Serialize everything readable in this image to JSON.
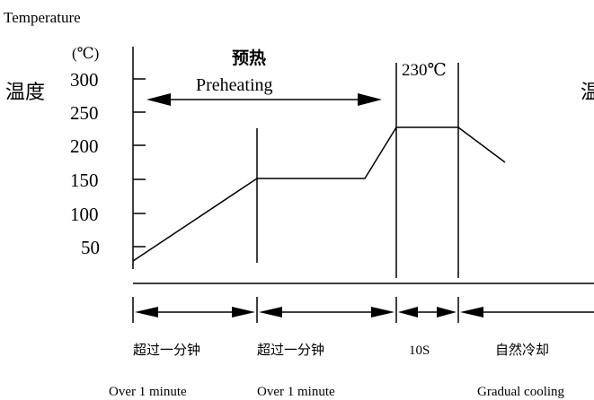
{
  "header": {
    "temperature_label": "Temperature",
    "unit_label": "(℃)",
    "temp_cn_left": "温度",
    "temp_cn_right_partial": "温"
  },
  "y_axis": {
    "ticks": [
      "300",
      "250",
      "200",
      "150",
      "100",
      "50"
    ]
  },
  "preheat": {
    "cn_label": "预热",
    "en_label": "Preheating"
  },
  "peak": {
    "label": "230℃"
  },
  "phases": [
    {
      "cn": "超过一分钟",
      "en": "Over 1 minute"
    },
    {
      "cn": "超过一分钟",
      "en": "Over 1 minute"
    },
    {
      "cn": "10S",
      "en": ""
    },
    {
      "cn": "自然冷却",
      "en": "Gradual cooling"
    }
  ],
  "colors": {
    "line": "#000000",
    "text": "#000000",
    "background": "#ffffff"
  }
}
